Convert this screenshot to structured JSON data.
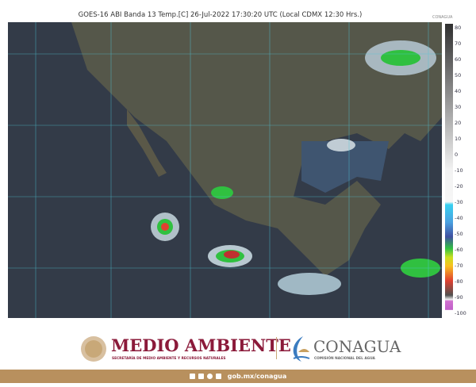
{
  "header": {
    "title": "GOES-16 ABI Banda 13 Temp.[C] 26-Jul-2022 17:30:20 UTC (Local CDMX  12:30 Hrs.)",
    "corner_logo": "CONAGUA"
  },
  "colorbar": {
    "ticks": [
      "80",
      "70",
      "60",
      "50",
      "40",
      "30",
      "20",
      "10",
      "0",
      "-10",
      "-20",
      "-30",
      "-40",
      "-50",
      "-60",
      "-70",
      "-80",
      "-90",
      "-100"
    ],
    "unit": "C"
  },
  "map": {
    "region": "Mexico",
    "gridline_color": "#4fc8d8",
    "ocean_color": "#2d3543",
    "land_color": "#5a5a48"
  },
  "footer": {
    "org1": "MEDIO AMBIENTE",
    "org1_sub": "SECRETARÍA DE MEDIO AMBIENTE Y RECURSOS NATURALES",
    "org2": "CONAGUA",
    "org2_sub": "COMISIÓN NACIONAL DEL AGUA",
    "url": "gob.mx/conagua",
    "social_icons": [
      "facebook-icon",
      "twitter-icon",
      "instagram-icon",
      "youtube-icon"
    ],
    "brand_color": "#8b1a3a",
    "bar_color": "#b8905e"
  }
}
